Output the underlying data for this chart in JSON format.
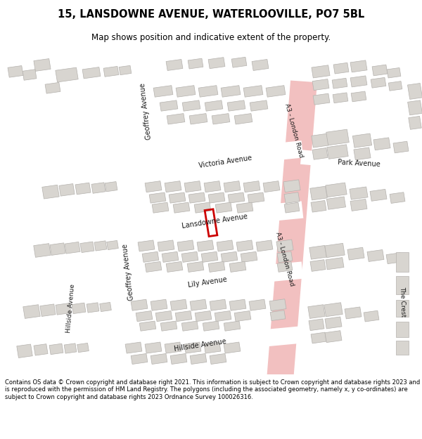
{
  "title": "15, LANSDOWNE AVENUE, WATERLOOVILLE, PO7 5BL",
  "subtitle": "Map shows position and indicative extent of the property.",
  "footer": "Contains OS data © Crown copyright and database right 2021. This information is subject to Crown copyright and database rights 2023 and is reproduced with the permission of HM Land Registry. The polygons (including the associated geometry, namely x, y co-ordinates) are subject to Crown copyright and database rights 2023 Ordnance Survey 100026316.",
  "bg_color": "#f5f4f0",
  "road_color": "#ffffff",
  "building_color": "#d8d5d0",
  "building_edge": "#b5b2ae",
  "a3_road_color": "#f2c0c0",
  "plot_color": "#cc0000",
  "map_bg": "#f0efeb"
}
